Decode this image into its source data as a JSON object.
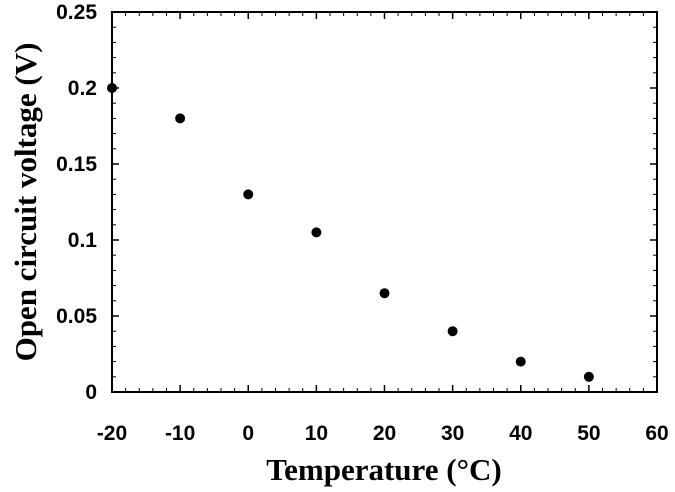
{
  "chart_data": {
    "type": "scatter",
    "title": "",
    "xlabel": "Temperature (°C)",
    "ylabel": "Open circuit  voltage (V)",
    "xlim": [
      -20,
      60
    ],
    "ylim": [
      0,
      0.25
    ],
    "x_ticks": [
      "-20",
      "-10",
      "0",
      "10",
      "20",
      "30",
      "40",
      "50",
      "60"
    ],
    "y_ticks": [
      "0",
      "0.05",
      "0.1",
      "0.15",
      "0.2",
      "0.25"
    ],
    "grid": false,
    "legend": "none",
    "marker_color": "#000000",
    "series": [
      {
        "x": [
          -20,
          -10,
          0,
          10,
          20,
          30,
          40,
          50
        ],
        "y": [
          0.2,
          0.18,
          0.13,
          0.105,
          0.065,
          0.04,
          0.02,
          0.01
        ]
      }
    ]
  }
}
